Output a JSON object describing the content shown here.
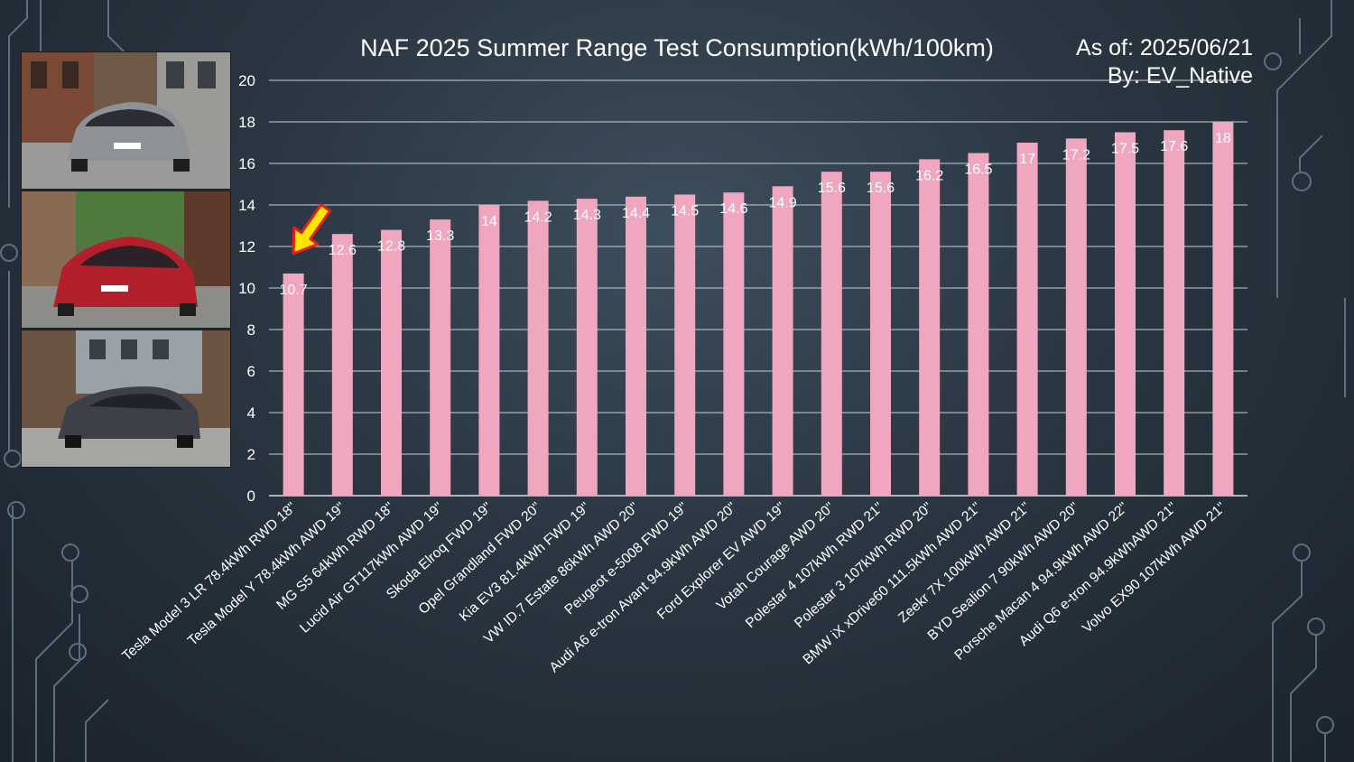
{
  "chart_data": {
    "type": "bar",
    "title": "NAF 2025 Summer Range Test Consumption(kWh/100km)",
    "as_of": "As of: 2025/06/21",
    "by": "By: EV_Native",
    "ylim": [
      0,
      20
    ],
    "yticks": [
      0,
      2,
      4,
      6,
      8,
      10,
      12,
      14,
      16,
      18,
      20
    ],
    "grid": true,
    "bar_color": "#f0a6bf",
    "categories": [
      "Tesla Model 3 LR 78.4kWh RWD 18\"",
      "Tesla Model Y 78.4kWh AWD 19\"",
      "MG S5 64kWh RWD 18\"",
      "Lucid Air GT117kWh AWD 19\"",
      "Skoda Elroq FWD 19\"",
      "Opel Grandland FWD 20\"",
      "Kia EV3 81.4kWh FWD 19\"",
      "VW ID.7 Estate 86kWh AWD 20\"",
      "Peugeot e-5008 FWD 19\"",
      "Audi A6 e-tron Avant 94.9kWh AWD 20\"",
      "Ford Explorer EV AWD 19\"",
      "Votah Courage AWD 20\"",
      "Polestar 4 107kWh RWD 21\"",
      "Polestar 3 107kWh RWD 20\"",
      "BMW iX xDrive60 111.5kWh AWD 21\"",
      "Zeekr 7X 100kWh AWD 21\"",
      "BYD Sealion 7 90kWh AWD 20\"",
      "Porsche Macan 4 94.9kWh AWD 22\"",
      "Audi Q6 e-tron 94.9kWhAWD 21\"",
      "Volvo EX90 107kWh AWD 21\""
    ],
    "values": [
      10.7,
      12.6,
      12.8,
      13.3,
      14,
      14.2,
      14.3,
      14.4,
      14.5,
      14.6,
      14.9,
      15.6,
      15.6,
      16.2,
      16.5,
      17,
      17.2,
      17.5,
      17.6,
      18
    ],
    "highlight_index": 0,
    "highlight_icon": "arrow-icon",
    "highlight_color": "#ffe600"
  },
  "photos": [
    {
      "icon": "grey-car-photo",
      "body_color": "#8e9297"
    },
    {
      "icon": "red-car-photo",
      "body_color": "#b3202b"
    },
    {
      "icon": "dark-suv-photo",
      "body_color": "#3d4049"
    }
  ]
}
